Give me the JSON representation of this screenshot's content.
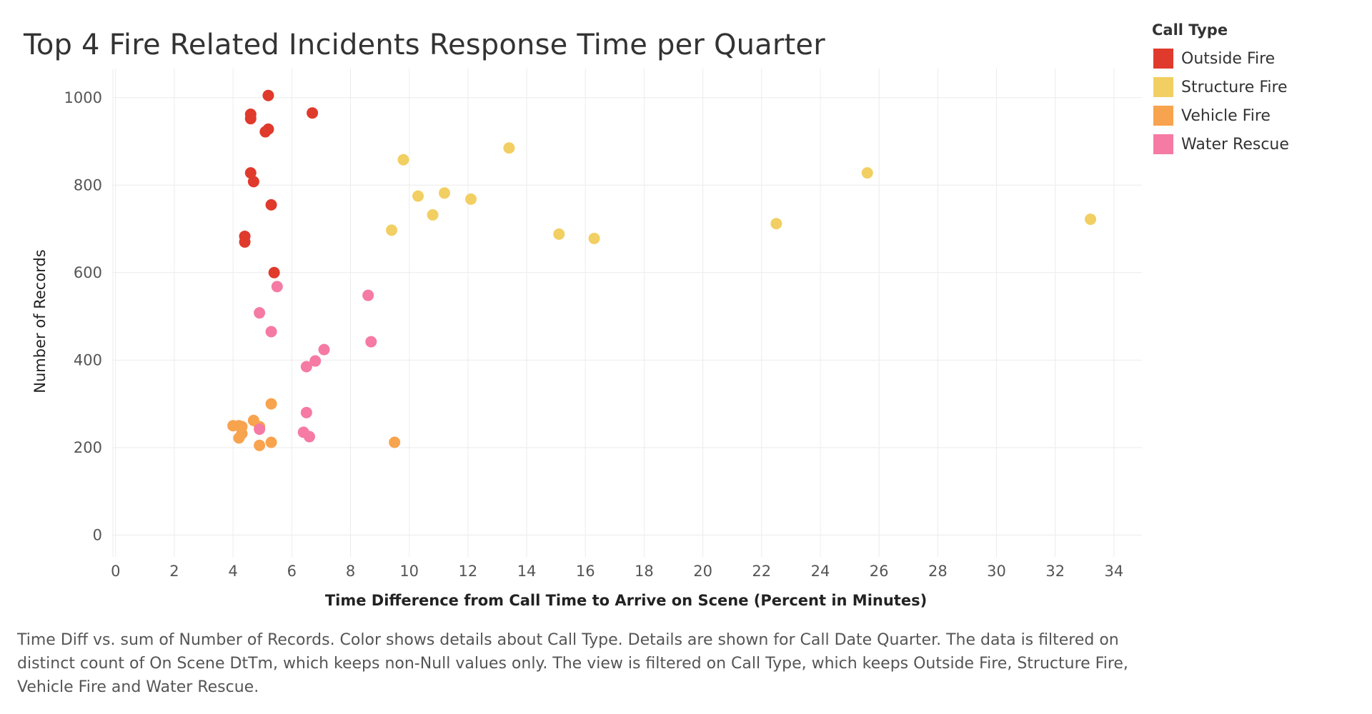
{
  "caption": "Time Diff vs. sum of Number of Records.  Color shows details about Call Type.  Details are shown for Call Date Quarter. The data is filtered on distinct count of On Scene DtTm, which keeps non-Null values only. The view is filtered on Call Type, which keeps Outside Fire, Structure Fire, Vehicle Fire and Water Rescue.",
  "chart_data": {
    "type": "scatter",
    "title": "Top 4 Fire Related Incidents Response Time per Quarter",
    "xlabel": "Time Difference from Call Time to Arrive on Scene (Percent in Minutes)",
    "ylabel": "Number of Records",
    "xlim": [
      -0.7,
      35
    ],
    "ylim": [
      -50,
      1060
    ],
    "xticks": [
      "0",
      "2",
      "4",
      "6",
      "8",
      "10",
      "12",
      "14",
      "16",
      "18",
      "20",
      "22",
      "24",
      "26",
      "28",
      "30",
      "32",
      "34"
    ],
    "xtick_values": [
      0,
      2,
      4,
      6,
      8,
      10,
      12,
      14,
      16,
      18,
      20,
      22,
      24,
      26,
      28,
      30,
      32,
      34
    ],
    "yticks": [
      "0",
      "200",
      "400",
      "600",
      "800",
      "1000"
    ],
    "ytick_values": [
      0,
      200,
      400,
      600,
      800,
      1000
    ],
    "grid": true,
    "legend_title": "Call Type",
    "legend_position": "right",
    "series": [
      {
        "name": "Outside Fire",
        "color": "#e03a2c",
        "points": [
          [
            5.2,
            1005
          ],
          [
            4.6,
            962
          ],
          [
            4.6,
            952
          ],
          [
            6.7,
            965
          ],
          [
            5.2,
            928
          ],
          [
            5.1,
            922
          ],
          [
            4.6,
            828
          ],
          [
            4.7,
            808
          ],
          [
            5.3,
            755
          ],
          [
            4.4,
            683
          ],
          [
            4.4,
            670
          ],
          [
            5.4,
            600
          ]
        ]
      },
      {
        "name": "Structure Fire",
        "color": "#f2cf63",
        "points": [
          [
            9.8,
            858
          ],
          [
            13.4,
            885
          ],
          [
            25.6,
            828
          ],
          [
            10.3,
            775
          ],
          [
            11.2,
            782
          ],
          [
            12.1,
            768
          ],
          [
            10.8,
            732
          ],
          [
            9.4,
            697
          ],
          [
            15.1,
            688
          ],
          [
            16.3,
            678
          ],
          [
            22.5,
            712
          ],
          [
            33.2,
            722
          ]
        ]
      },
      {
        "name": "Vehicle Fire",
        "color": "#f8a34e",
        "points": [
          [
            5.3,
            300
          ],
          [
            4.7,
            262
          ],
          [
            4.0,
            250
          ],
          [
            4.2,
            250
          ],
          [
            4.3,
            248
          ],
          [
            4.9,
            248
          ],
          [
            4.3,
            232
          ],
          [
            4.2,
            222
          ],
          [
            4.9,
            205
          ],
          [
            5.3,
            212
          ],
          [
            9.5,
            212
          ]
        ]
      },
      {
        "name": "Water Rescue",
        "color": "#f57aa4",
        "points": [
          [
            5.5,
            568
          ],
          [
            4.9,
            508
          ],
          [
            8.6,
            548
          ],
          [
            5.3,
            465
          ],
          [
            8.7,
            442
          ],
          [
            7.1,
            424
          ],
          [
            6.8,
            398
          ],
          [
            6.5,
            385
          ],
          [
            6.5,
            280
          ],
          [
            4.9,
            242
          ],
          [
            6.4,
            235
          ],
          [
            6.6,
            225
          ]
        ]
      }
    ]
  }
}
